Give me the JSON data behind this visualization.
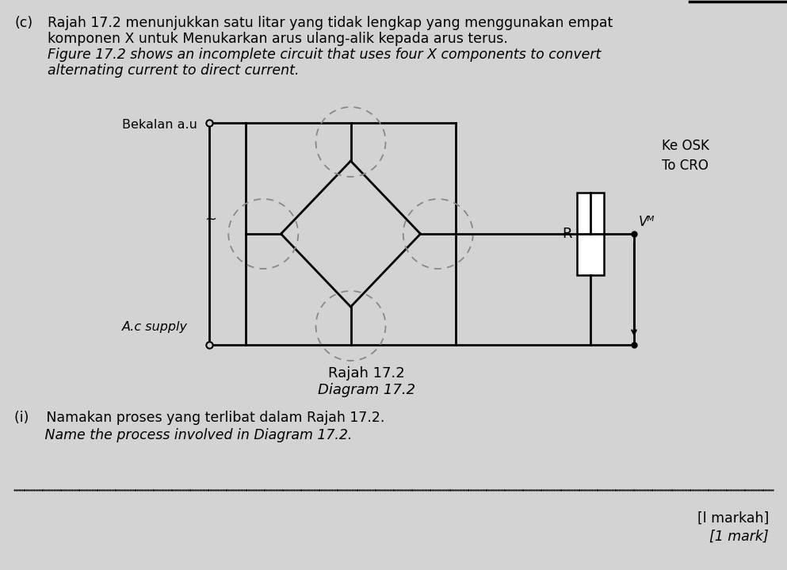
{
  "bg_color": "#d3d3d3",
  "text_color": "#000000",
  "title_prefix": "(c)",
  "paragraph_line1": "Rajah 17.2 menunjukkan satu litar yang tidak lengkap yang menggunakan empat",
  "paragraph_line2": "komponen X untuk Menukarkan arus ulang-alik kepada arus terus.",
  "paragraph_line3": "Figure 17.2 shows an incomplete circuit that uses four X components to convert",
  "paragraph_line4": "alternating current to direct current.",
  "caption1": "Rajah 17.2",
  "caption2": "Diagram 17.2",
  "label_bekalan": "Bekalan a.u",
  "label_ac": "A.c supply",
  "label_ke_osk": "Ke OSK",
  "label_to_cro": "To CRO",
  "label_R": "R",
  "label_VR": "Vᴹ",
  "question_line1": "(i)    Namakan proses yang terlibat dalam Rajah 17.2.",
  "question_line2": "       Name the process involved in Diagram 17.2.",
  "mark_line1": "[l markah]",
  "mark_line2": "[1 mark]"
}
